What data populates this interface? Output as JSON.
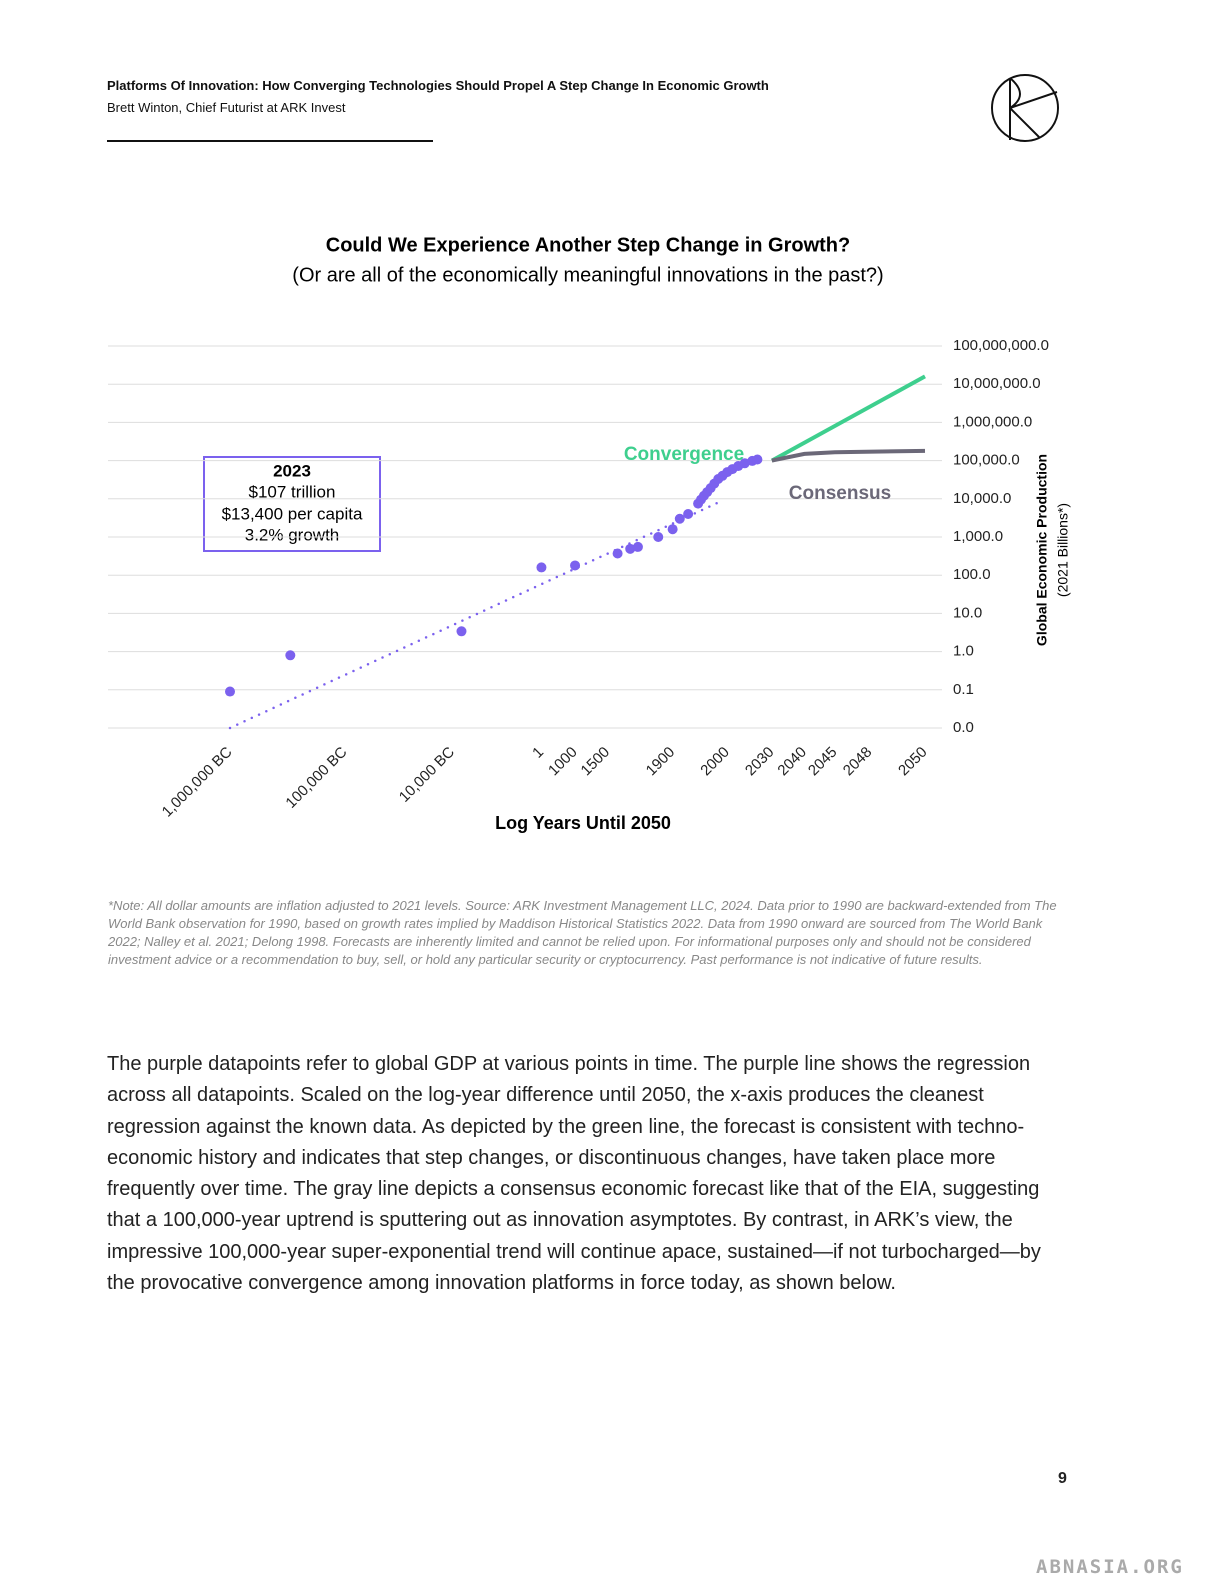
{
  "header": {
    "title": "Platforms Of Innovation: How Converging Technologies Should Propel A Step Change In Economic Growth",
    "author": "Brett Winton, Chief Futurist at ARK Invest"
  },
  "chart_data": {
    "type": "scatter",
    "title": "Could We Experience Another Step Change in Growth?",
    "subtitle": "(Or are all of the economically meaningful innovations in the past?)",
    "x_label": "Log Years Until 2050",
    "y_label": "Global Economic Production",
    "y_label_sub": "(2021 Billions*)",
    "xscale": "log",
    "yscale": "log",
    "grid": true,
    "y_axis_side": "right",
    "xlim": [
      -1000000,
      2050
    ],
    "xticks": [
      {
        "value": -1000000,
        "label": "1,000,000 BC"
      },
      {
        "value": -100000,
        "label": "100,000 BC"
      },
      {
        "value": -10000,
        "label": "10,000 BC"
      },
      1,
      1000,
      1500,
      1900,
      2000,
      2030,
      2040,
      2045,
      2048,
      2050
    ],
    "ylim": [
      0.01,
      100000000
    ],
    "yticks": [
      {
        "value": 0.01,
        "label": "0.0"
      },
      0.1,
      {
        "value": 1,
        "label": "1.0"
      },
      {
        "value": 10,
        "label": "10.0"
      },
      {
        "value": 100,
        "label": "100.0"
      },
      {
        "value": 1000,
        "label": "1,000.0"
      },
      {
        "value": 10000,
        "label": "10,000.0"
      },
      {
        "value": 100000,
        "label": "100,000.0"
      },
      {
        "value": 1000000,
        "label": "1,000,000.0"
      },
      {
        "value": 10000000,
        "label": "10,000,000.0"
      },
      {
        "value": 100000000,
        "label": "100,000,000.0"
      }
    ],
    "annotation": [
      "2023",
      "$107 trillion",
      "$13,400 per capita",
      "3.2% growth"
    ],
    "series": [
      {
        "type": "scatter",
        "color": "#7b61ee",
        "x": [
          -1000000,
          -300000,
          -8000,
          1,
          1000,
          1600,
          1700,
          1750,
          1850,
          1900,
          1920,
          1940,
          1960,
          1965,
          1970,
          1975,
          1980,
          1985,
          1990,
          1995,
          2000,
          2005,
          2010,
          2015,
          2020,
          2023
        ],
        "values": [
          0.09,
          0.8,
          3.4,
          160,
          180,
          370,
          490,
          550,
          1000,
          1600,
          3000,
          4000,
          7500,
          9500,
          12000,
          15000,
          19000,
          25000,
          33000,
          40000,
          50000,
          60000,
          72000,
          85000,
          98000,
          107000
        ]
      },
      {
        "type": "line",
        "style": "dotted",
        "color": "#7b61ee",
        "x": [
          -1000000,
          1990
        ],
        "values": [
          0.01,
          8000
        ]
      },
      {
        "type": "line",
        "name": "Convergence",
        "color": "#3ecf8e",
        "x": [
          2030,
          2050
        ],
        "values": [
          100000,
          16000000
        ]
      },
      {
        "type": "line",
        "name": "Consensus",
        "color": "#6b6878",
        "x": [
          2030,
          2040,
          2045,
          2050
        ],
        "values": [
          100000,
          150000,
          165000,
          180000
        ]
      }
    ]
  },
  "note": "*Note: All dollar amounts are inflation adjusted to 2021 levels. Source: ARK Investment Management LLC, 2024. Data prior to 1990 are backward-extended from The World Bank observation for 1990, based on growth rates implied by Maddison Historical Statistics 2022. Data from 1990 onward are sourced from The World Bank 2022; Nalley et al. 2021; Delong 1998. Forecasts are inherently limited and cannot be relied upon. For informational purposes only and should not be considered investment advice or a recommendation to buy, sell, or hold any particular security or cryptocurrency. Past performance is not indicative of future results.",
  "body": "The purple datapoints refer to global GDP at various points in time. The purple line shows the regression across all datapoints. Scaled on the log-year difference until 2050, the x-axis produces the cleanest regression against the known data. As depicted by the green line, the forecast is consistent with techno-economic history and indicates that step changes, or discontinuous changes, have taken place more frequently over time. The gray line depicts a consensus economic forecast like that of the EIA, suggesting that a 100,000-year uptrend is sputtering out as innovation asymptotes. By contrast, in ARK’s view, the impressive 100,000-year super-exponential trend will continue apace, sustained—if not turbocharged—by the provocative convergence among innovation platforms in force today, as shown below.",
  "page_number": "9",
  "watermark": "ABNASIA.ORG"
}
